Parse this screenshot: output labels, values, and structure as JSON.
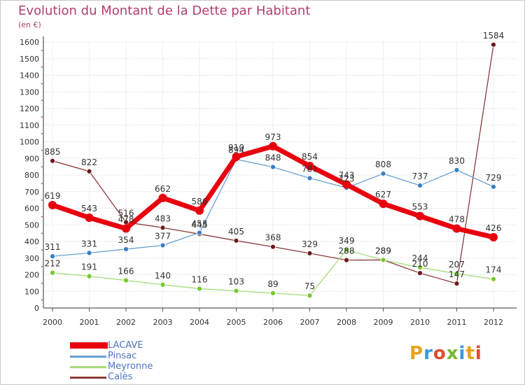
{
  "title": "Evolution du Montant de la Dette par Habitant",
  "subtitle": "(en €)",
  "logo": {
    "text": "Proxiti",
    "colors": [
      "#e8a21f",
      "#3a9ad9",
      "#e34a2a",
      "#74b72c",
      "#3a9ad9",
      "#e8a21f",
      "#e34a2a"
    ]
  },
  "chart_data": {
    "type": "line",
    "title": "Evolution du Montant de la Dette par Habitant",
    "ylabel": "(en €)",
    "x": [
      "2000",
      "2001",
      "2002",
      "2003",
      "2004",
      "2005",
      "2006",
      "2007",
      "2008",
      "2009",
      "2010",
      "2011",
      "2012"
    ],
    "ylim": [
      0,
      1600
    ],
    "yticks": [
      0,
      100,
      200,
      300,
      400,
      500,
      600,
      700,
      800,
      900,
      1000,
      1100,
      1200,
      1300,
      1400,
      1500,
      1600
    ],
    "grid": true,
    "legend_position": "bottom-left",
    "series": [
      {
        "name": "LACAVE",
        "color": "#e8000e",
        "marker": "#e8000e",
        "width": 7,
        "radius": 6,
        "values": [
          619,
          543,
          478,
          662,
          586,
          910,
          973,
          854,
          743,
          627,
          553,
          478,
          426
        ],
        "labels": [
          "619",
          "543",
          "478",
          "662",
          "586",
          "910",
          "973",
          "854",
          "743",
          "627",
          "553",
          "478",
          "426"
        ]
      },
      {
        "name": "Pinsac",
        "color": "#6aa0d2",
        "marker": "#3a7fc2",
        "width": 1.3,
        "radius": 3.5,
        "values": [
          311,
          331,
          354,
          377,
          453,
          894,
          848,
          781,
          723,
          808,
          737,
          830,
          729
        ],
        "labels": [
          "311",
          "331",
          "354",
          "377",
          "453",
          "894",
          "848",
          "781",
          "723",
          "808",
          "737",
          "830",
          "729"
        ]
      },
      {
        "name": "Meyronne",
        "color": "#a6dc7a",
        "marker": "#74c82c",
        "width": 1.3,
        "radius": 3.5,
        "values": [
          212,
          191,
          166,
          140,
          116,
          103,
          89,
          75,
          349,
          289,
          244,
          207,
          174
        ],
        "labels": [
          "212",
          "191",
          "166",
          "140",
          "116",
          "103",
          "89",
          "75",
          "349",
          "289",
          "244",
          "207",
          "174"
        ]
      },
      {
        "name": "Calès",
        "color": "#8b3a3a",
        "marker": "#6e1a1a",
        "width": 1.3,
        "radius": 3.5,
        "values": [
          885,
          822,
          516,
          483,
          445,
          405,
          368,
          329,
          288,
          289,
          210,
          147,
          1584
        ],
        "labels": [
          "885",
          "822",
          "516",
          "483",
          "445",
          "405",
          "368",
          "329",
          "288",
          "289",
          "210",
          "147",
          "1584"
        ]
      }
    ]
  }
}
